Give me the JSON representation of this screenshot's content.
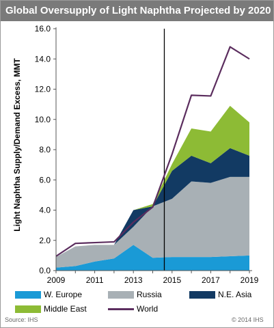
{
  "title": "Global Oversupply of Light Naphtha Projected by 2020",
  "source": "Source: IHS",
  "copyright": "© 2014 IHS",
  "colors": {
    "title_bar": "#7a7a7a",
    "w_europe": "#1a9ad6",
    "russia": "#a8b0b5",
    "ne_asia": "#123a63",
    "middle_east": "#8dbb35",
    "world": "#5b2d5e"
  },
  "chart_data": {
    "type": "area",
    "title": "Global Oversupply of Light Naphtha Projected by 2020",
    "ylabel": "Light Naphtha Supply/Demand Excess, MMT",
    "xlabel": "",
    "ylim": [
      0,
      16
    ],
    "xlim": [
      2009,
      2019
    ],
    "y_ticks": [
      "0.0",
      "2.0",
      "4.0",
      "6.0",
      "8.0",
      "10.0",
      "12.0",
      "14.0",
      "16.0"
    ],
    "x_ticks": [
      "2009",
      "2011",
      "2013",
      "2015",
      "2017",
      "2019"
    ],
    "stacked": true,
    "vertical_line_x": 2014.6,
    "x": [
      2009,
      2010,
      2011,
      2012,
      2013,
      2014,
      2015,
      2016,
      2017,
      2018,
      2019
    ],
    "series": [
      {
        "name": "W. Europe",
        "type": "area",
        "values": [
          0.2,
          0.3,
          0.6,
          0.8,
          1.7,
          0.85,
          0.9,
          0.9,
          0.9,
          0.95,
          1.0
        ]
      },
      {
        "name": "Russia",
        "type": "area",
        "values": [
          0.7,
          1.3,
          1.1,
          0.9,
          1.2,
          3.4,
          3.85,
          5.0,
          4.9,
          5.25,
          5.2
        ]
      },
      {
        "name": "N.E. Asia",
        "type": "area",
        "values": [
          0.0,
          0.0,
          0.0,
          0.0,
          1.1,
          0.0,
          1.85,
          1.7,
          1.3,
          1.9,
          1.4
        ]
      },
      {
        "name": "Middle East",
        "type": "area",
        "values": [
          0.0,
          0.0,
          0.0,
          0.0,
          0.0,
          0.15,
          0.45,
          1.8,
          2.1,
          2.8,
          2.2
        ]
      },
      {
        "name": "World",
        "type": "line",
        "values": [
          0.95,
          1.8,
          1.85,
          1.9,
          3.2,
          4.2,
          7.7,
          11.6,
          11.55,
          14.8,
          14.0
        ]
      }
    ],
    "legend": [
      "W. Europe",
      "Russia",
      "N.E. Asia",
      "Middle East",
      "World"
    ],
    "legend_position": "bottom",
    "grid": false
  }
}
